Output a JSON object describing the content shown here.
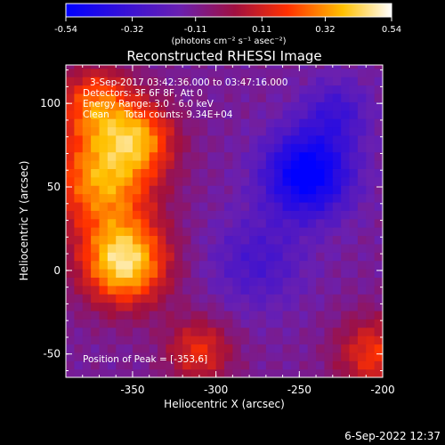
{
  "chart_data": {
    "type": "heatmap",
    "title": "Reconstructed RHESSI Image",
    "xlabel": "Heliocentric X (arcsec)",
    "ylabel": "Heliocentric Y (arcsec)",
    "xlim": [
      -390,
      -200
    ],
    "ylim": [
      -64,
      123
    ],
    "xticks": [
      "-350",
      "-300",
      "-250",
      "-200"
    ],
    "xtick_values": [
      -350,
      -300,
      -250,
      -200
    ],
    "yticks": [
      "-50",
      "0",
      "50",
      "100"
    ],
    "ytick_values": [
      -50,
      0,
      50,
      100
    ],
    "colorbar": {
      "ticks": [
        "-0.54",
        "-0.32",
        "-0.11",
        "0.11",
        "0.32",
        "0.54"
      ],
      "tick_values": [
        -0.54,
        -0.32,
        -0.11,
        0.11,
        0.32,
        0.54
      ],
      "range": [
        -0.54,
        0.54
      ],
      "units": "(photons cm⁻² s⁻¹ asec⁻²)",
      "colors": [
        "#0000ff",
        "#5a1ab8",
        "#8a2090",
        "#c01010",
        "#ff4000",
        "#ffd000",
        "#ffffff"
      ]
    },
    "annotations": [
      "3-Sep-2017 03:42:36.000 to 03:47:16.000",
      "Detectors: 3F 6F 8F, Att 0",
      "Energy Range: 3.0 - 6.0 keV",
      "Clean     Total counts: 9.34E+04"
    ],
    "peak_label": "Position of Peak = [-353,6]",
    "peak_position": [
      -353,
      6
    ],
    "timestamp": "6-Sep-2022 12:37",
    "sources": [
      {
        "x": -355,
        "y": 5,
        "value": 0.54,
        "sigma": 18
      },
      {
        "x": -368,
        "y": 55,
        "value": 0.42,
        "sigma": 22
      },
      {
        "x": -345,
        "y": 80,
        "value": 0.3,
        "sigma": 15
      },
      {
        "x": -372,
        "y": 100,
        "value": 0.32,
        "sigma": 16
      },
      {
        "x": -310,
        "y": -48,
        "value": 0.24,
        "sigma": 14
      },
      {
        "x": -205,
        "y": -50,
        "value": 0.26,
        "sigma": 16
      },
      {
        "x": -245,
        "y": 58,
        "value": -0.5,
        "sigma": 18
      },
      {
        "x": -228,
        "y": 95,
        "value": -0.22,
        "sigma": 14
      },
      {
        "x": -275,
        "y": 5,
        "value": -0.2,
        "sigma": 20
      }
    ]
  }
}
